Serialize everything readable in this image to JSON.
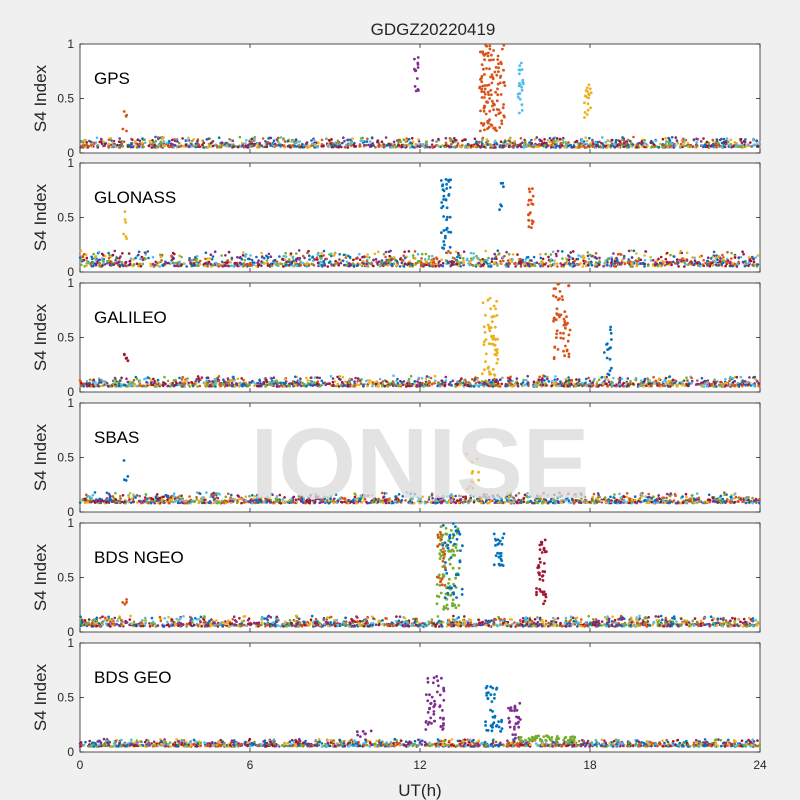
{
  "chart_data": {
    "type": "scatter",
    "title": "GDGZ20220419",
    "xlabel": "UT(h)",
    "ylabel": "S4 Index",
    "xlim": [
      0,
      24
    ],
    "ylim": [
      0,
      1
    ],
    "xticks": [
      "0",
      "6",
      "12",
      "18",
      "24"
    ],
    "yticks": [
      "0",
      "0.5",
      "1"
    ],
    "watermark": "IONISE",
    "colors": [
      "#0072BD",
      "#D95319",
      "#EDB120",
      "#7E2F8E",
      "#77AC30",
      "#4DBEEE",
      "#A2142F"
    ],
    "panels": [
      {
        "name": "GPS",
        "baseline": [
          0.05,
          0.15
        ],
        "events": [
          {
            "x": [
              11.8,
              11.95
            ],
            "y": [
              0.55,
              1.0
            ],
            "color": "#7E2F8E",
            "n": 14
          },
          {
            "x": [
              14.1,
              15.0
            ],
            "y": [
              0.2,
              1.0
            ],
            "color": "#D95319",
            "n": 120
          },
          {
            "x": [
              15.45,
              15.65
            ],
            "y": [
              0.35,
              0.85
            ],
            "color": "#4DBEEE",
            "n": 22
          },
          {
            "x": [
              17.8,
              18.05
            ],
            "y": [
              0.3,
              0.65
            ],
            "color": "#EDB120",
            "n": 18
          },
          {
            "x": [
              1.5,
              1.65
            ],
            "y": [
              0.2,
              0.5
            ],
            "color": "#D95319",
            "n": 5
          }
        ]
      },
      {
        "name": "GLONASS",
        "baseline": [
          0.05,
          0.2
        ],
        "events": [
          {
            "x": [
              12.75,
              13.1
            ],
            "y": [
              0.2,
              0.85
            ],
            "color": "#0072BD",
            "n": 40
          },
          {
            "x": [
              14.8,
              14.95
            ],
            "y": [
              0.5,
              0.85
            ],
            "color": "#0072BD",
            "n": 6
          },
          {
            "x": [
              15.8,
              16.0
            ],
            "y": [
              0.4,
              0.78
            ],
            "color": "#D95319",
            "n": 22
          },
          {
            "x": [
              1.5,
              1.65
            ],
            "y": [
              0.3,
              0.6
            ],
            "color": "#EDB120",
            "n": 6
          }
        ]
      },
      {
        "name": "GALILEO",
        "baseline": [
          0.05,
          0.15
        ],
        "events": [
          {
            "x": [
              14.2,
              14.75
            ],
            "y": [
              0.15,
              0.9
            ],
            "color": "#EDB120",
            "n": 60
          },
          {
            "x": [
              16.7,
              17.3
            ],
            "y": [
              0.3,
              1.0
            ],
            "color": "#D95319",
            "n": 55
          },
          {
            "x": [
              18.5,
              18.8
            ],
            "y": [
              0.15,
              0.6
            ],
            "color": "#0072BD",
            "n": 16
          },
          {
            "x": [
              1.55,
              1.7
            ],
            "y": [
              0.2,
              0.38
            ],
            "color": "#A2142F",
            "n": 5
          }
        ]
      },
      {
        "name": "SBAS",
        "baseline": [
          0.08,
          0.18
        ],
        "events": [
          {
            "x": [
              13.6,
              14.1
            ],
            "y": [
              0.15,
              0.55
            ],
            "color": "#EDB120",
            "n": 12
          },
          {
            "x": [
              1.55,
              1.7
            ],
            "y": [
              0.2,
              0.6
            ],
            "color": "#0072BD",
            "n": 4
          }
        ]
      },
      {
        "name": "BDS NGEO",
        "baseline": [
          0.05,
          0.15
        ],
        "events": [
          {
            "x": [
              12.6,
              13.4
            ],
            "y": [
              0.2,
              1.0
            ],
            "color": "#77AC30",
            "n": 90
          },
          {
            "x": [
              12.8,
              13.5
            ],
            "y": [
              0.3,
              1.0
            ],
            "color": "#0072BD",
            "n": 40
          },
          {
            "x": [
              12.6,
              12.9
            ],
            "y": [
              0.4,
              0.95
            ],
            "color": "#D95319",
            "n": 20
          },
          {
            "x": [
              14.6,
              15.0
            ],
            "y": [
              0.6,
              0.92
            ],
            "color": "#0072BD",
            "n": 24
          },
          {
            "x": [
              16.1,
              16.5
            ],
            "y": [
              0.25,
              0.85
            ],
            "color": "#A2142F",
            "n": 40
          },
          {
            "x": [
              1.5,
              1.65
            ],
            "y": [
              0.2,
              0.3
            ],
            "color": "#D95319",
            "n": 4
          }
        ]
      },
      {
        "name": "BDS GEO",
        "baseline": [
          0.05,
          0.12
        ],
        "events": [
          {
            "x": [
              12.2,
              12.85
            ],
            "y": [
              0.2,
              0.72
            ],
            "color": "#7E2F8E",
            "n": 50
          },
          {
            "x": [
              14.3,
              14.9
            ],
            "y": [
              0.15,
              0.62
            ],
            "color": "#0072BD",
            "n": 40
          },
          {
            "x": [
              15.1,
              15.6
            ],
            "y": [
              0.12,
              0.45
            ],
            "color": "#7E2F8E",
            "n": 30
          },
          {
            "x": [
              15.5,
              17.5
            ],
            "y": [
              0.1,
              0.15
            ],
            "color": "#77AC30",
            "n": 60
          },
          {
            "x": [
              9.7,
              10.3
            ],
            "y": [
              0.1,
              0.2
            ],
            "color": "#7E2F8E",
            "n": 8
          }
        ]
      }
    ]
  }
}
